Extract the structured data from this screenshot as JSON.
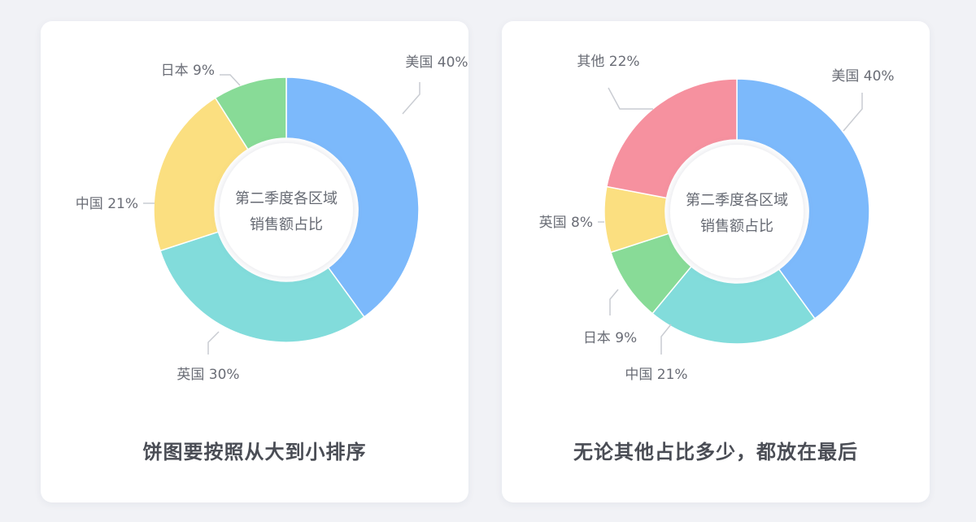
{
  "chart_data": [
    {
      "type": "pie",
      "center_title_lines": [
        "第二季度各区域",
        "销售额占比"
      ],
      "caption": "饼图要按照从大到小排序",
      "slices": [
        {
          "label": "美国 40%",
          "value": 40,
          "color": "#7cb9fb"
        },
        {
          "label": "英国 30%",
          "value": 30,
          "color": "#82dcdb"
        },
        {
          "label": "中国 21%",
          "value": 21,
          "color": "#fbdf80"
        },
        {
          "label": "日本 9%",
          "value": 9,
          "color": "#88db97"
        }
      ]
    },
    {
      "type": "pie",
      "center_title_lines": [
        "第二季度各区域",
        "销售额占比"
      ],
      "caption": "无论其他占比多少，都放在最后",
      "slices": [
        {
          "label": "美国 40%",
          "value": 40,
          "color": "#7cb9fb"
        },
        {
          "label": "中国 21%",
          "value": 21,
          "color": "#82dcdb"
        },
        {
          "label": "日本 9%",
          "value": 9,
          "color": "#88db97"
        },
        {
          "label": "英国 8%",
          "value": 8,
          "color": "#fbdf80"
        },
        {
          "label": "其他 22%",
          "value": 22,
          "color": "#f6919f"
        }
      ]
    }
  ]
}
